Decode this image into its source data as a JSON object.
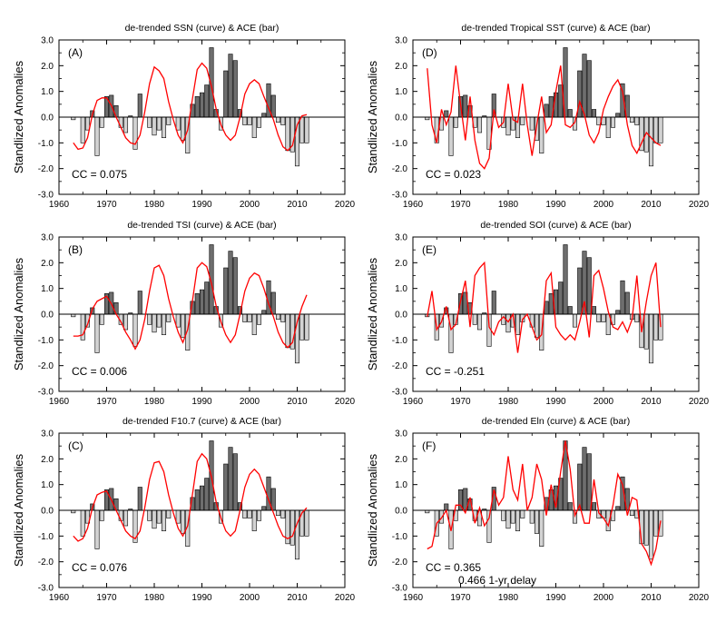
{
  "figure": {
    "ylabel": "Standlized Anomalies"
  },
  "chart_data": [
    {
      "type": "bar",
      "panel": "(A)",
      "title": "de-trended SSN (curve) & ACE (bar)",
      "ylabel": "Standlized Anomalies",
      "cc": "CC =  0.075",
      "xlim": [
        1960,
        2020
      ],
      "ylim": [
        -3.0,
        3.0
      ],
      "line": {
        "x": [
          1963,
          1964,
          1965,
          1966,
          1967,
          1968,
          1969,
          1970,
          1971,
          1972,
          1973,
          1974,
          1975,
          1976,
          1977,
          1978,
          1979,
          1980,
          1981,
          1982,
          1983,
          1984,
          1985,
          1986,
          1987,
          1988,
          1989,
          1990,
          1991,
          1992,
          1993,
          1994,
          1995,
          1996,
          1997,
          1998,
          1999,
          2000,
          2001,
          2002,
          2003,
          2004,
          2005,
          2006,
          2007,
          2008,
          2009,
          2010,
          2011,
          2012
        ],
        "y": [
          -1.0,
          -1.25,
          -1.2,
          -0.8,
          0.1,
          0.65,
          0.75,
          0.75,
          0.45,
          0.0,
          -0.4,
          -0.8,
          -1.0,
          -1.05,
          -0.7,
          0.2,
          1.3,
          1.95,
          1.8,
          1.5,
          0.6,
          -0.1,
          -0.7,
          -1.0,
          -0.5,
          0.7,
          1.85,
          2.1,
          1.9,
          1.2,
          0.3,
          -0.3,
          -0.7,
          -0.9,
          -0.7,
          0.0,
          0.9,
          1.3,
          1.45,
          1.3,
          0.8,
          0.35,
          -0.1,
          -0.7,
          -1.15,
          -1.3,
          -1.1,
          -0.3,
          0.05,
          0.1
        ]
      }
    },
    {
      "type": "bar",
      "panel": "(B)",
      "title": "de-trended TSI (curve) & ACE (bar)",
      "ylabel": "Standlized Anomalies",
      "cc": "CC =  0.006",
      "xlim": [
        1960,
        2020
      ],
      "ylim": [
        -3.0,
        3.0
      ],
      "line": {
        "x": [
          1963,
          1964,
          1965,
          1966,
          1967,
          1968,
          1969,
          1970,
          1971,
          1972,
          1973,
          1974,
          1975,
          1976,
          1977,
          1978,
          1979,
          1980,
          1981,
          1982,
          1983,
          1984,
          1985,
          1986,
          1987,
          1988,
          1989,
          1990,
          1991,
          1992,
          1993,
          1994,
          1995,
          1996,
          1997,
          1998,
          1999,
          2000,
          2001,
          2002,
          2003,
          2004,
          2005,
          2006,
          2007,
          2008,
          2009,
          2010,
          2011,
          2012
        ],
        "y": [
          -0.85,
          -0.85,
          -0.8,
          -0.4,
          0.2,
          0.5,
          0.6,
          0.7,
          0.4,
          0.0,
          -0.3,
          -0.7,
          -1.0,
          -1.35,
          -1.0,
          -0.2,
          0.9,
          1.8,
          1.9,
          1.5,
          0.6,
          -0.1,
          -0.7,
          -1.1,
          -0.6,
          0.5,
          1.8,
          2.0,
          1.85,
          1.2,
          0.3,
          -0.3,
          -0.8,
          -1.1,
          -0.8,
          0.0,
          0.9,
          1.4,
          1.6,
          1.5,
          1.0,
          0.4,
          -0.1,
          -0.7,
          -1.1,
          -1.3,
          -1.1,
          -0.3,
          0.3,
          0.75
        ]
      }
    },
    {
      "type": "bar",
      "panel": "(C)",
      "title": "de-trended F10.7 (curve) & ACE (bar)",
      "ylabel": "Standlized Anomalies",
      "cc": "CC =  0.076",
      "xlim": [
        1960,
        2020
      ],
      "ylim": [
        -3.0,
        3.0
      ],
      "line": {
        "x": [
          1963,
          1964,
          1965,
          1966,
          1967,
          1968,
          1969,
          1970,
          1971,
          1972,
          1973,
          1974,
          1975,
          1976,
          1977,
          1978,
          1979,
          1980,
          1981,
          1982,
          1983,
          1984,
          1985,
          1986,
          1987,
          1988,
          1989,
          1990,
          1991,
          1992,
          1993,
          1994,
          1995,
          1996,
          1997,
          1998,
          1999,
          2000,
          2001,
          2002,
          2003,
          2004,
          2005,
          2006,
          2007,
          2008,
          2009,
          2010,
          2011,
          2012
        ],
        "y": [
          -1.0,
          -1.2,
          -1.1,
          -0.7,
          0.1,
          0.6,
          0.7,
          0.75,
          0.4,
          0.0,
          -0.4,
          -0.8,
          -1.0,
          -1.1,
          -0.8,
          0.1,
          1.2,
          1.85,
          1.9,
          1.5,
          0.6,
          -0.1,
          -0.7,
          -1.0,
          -0.6,
          0.6,
          1.9,
          2.2,
          2.0,
          1.3,
          0.3,
          -0.3,
          -0.8,
          -1.0,
          -0.8,
          0.0,
          0.9,
          1.4,
          1.6,
          1.4,
          0.9,
          0.4,
          -0.1,
          -0.6,
          -1.0,
          -1.1,
          -1.0,
          -0.5,
          -0.1,
          0.1
        ]
      }
    },
    {
      "type": "bar",
      "panel": "(D)",
      "title": "de-trended Tropical SST (curve) & ACE (bar)",
      "ylabel": "Standlized Anomalies",
      "cc": "CC =  0.023",
      "xlim": [
        1960,
        2020
      ],
      "ylim": [
        -3.0,
        3.0
      ],
      "line": {
        "x": [
          1963,
          1964,
          1965,
          1966,
          1967,
          1968,
          1969,
          1970,
          1971,
          1972,
          1973,
          1974,
          1975,
          1976,
          1977,
          1978,
          1979,
          1980,
          1981,
          1982,
          1983,
          1984,
          1985,
          1986,
          1987,
          1988,
          1989,
          1990,
          1991,
          1992,
          1993,
          1994,
          1995,
          1996,
          1997,
          1998,
          1999,
          2000,
          2001,
          2002,
          2003,
          2004,
          2005,
          2006,
          2007,
          2008,
          2009,
          2010,
          2011,
          2012
        ],
        "y": [
          1.9,
          -0.3,
          -1.0,
          0.3,
          -0.3,
          0.2,
          2.0,
          0.5,
          -0.9,
          0.8,
          -0.9,
          -1.8,
          -2.0,
          -1.6,
          0.3,
          -0.4,
          -0.2,
          1.3,
          -0.1,
          -0.2,
          1.3,
          -0.3,
          -1.5,
          -0.3,
          0.8,
          -0.6,
          -0.3,
          1.0,
          2.0,
          -0.3,
          -0.4,
          -0.2,
          0.6,
          0.1,
          -0.7,
          -1.0,
          -0.6,
          0.3,
          0.8,
          1.2,
          1.45,
          1.0,
          -0.3,
          -1.1,
          -1.4,
          -1.0,
          -0.6,
          -0.8,
          -1.0,
          -1.1
        ]
      }
    },
    {
      "type": "bar",
      "panel": "(E)",
      "title": "de-trended SOI (curve) & ACE (bar)",
      "ylabel": "Standlized Anomalies",
      "cc": "CC = -0.251",
      "xlim": [
        1960,
        2020
      ],
      "ylim": [
        -3.0,
        3.0
      ],
      "line": {
        "x": [
          1963,
          1964,
          1965,
          1966,
          1967,
          1968,
          1969,
          1970,
          1971,
          1972,
          1973,
          1974,
          1975,
          1976,
          1977,
          1978,
          1979,
          1980,
          1981,
          1982,
          1983,
          1984,
          1985,
          1986,
          1987,
          1988,
          1989,
          1990,
          1991,
          1992,
          1993,
          1994,
          1995,
          1996,
          1997,
          1998,
          1999,
          2000,
          2001,
          2002,
          2003,
          2004,
          2005,
          2006,
          2007,
          2008,
          2009,
          2010,
          2011,
          2012
        ],
        "y": [
          -0.1,
          0.9,
          -0.6,
          -0.3,
          0.3,
          -0.6,
          -0.4,
          0.5,
          1.3,
          -0.5,
          1.5,
          1.8,
          2.0,
          -0.5,
          -0.8,
          -0.3,
          -0.1,
          -0.3,
          0.0,
          -1.5,
          -0.2,
          0.0,
          -0.5,
          -1.0,
          -0.8,
          1.3,
          1.6,
          -0.5,
          -0.8,
          -1.0,
          -0.8,
          -1.0,
          -0.3,
          0.5,
          -0.9,
          1.5,
          1.7,
          1.0,
          0.1,
          -0.5,
          -0.6,
          -0.3,
          -0.7,
          -0.2,
          1.5,
          -0.7,
          0.5,
          1.5,
          2.0,
          -0.5
        ]
      }
    },
    {
      "type": "bar",
      "panel": "(F)",
      "title": "de-trended Eln (curve) & ACE (bar)",
      "ylabel": "Standlized Anomalies",
      "cc": "CC =  0.365",
      "cc2": "0.466 1-yr delay",
      "xlim": [
        1960,
        2020
      ],
      "ylim": [
        -3.0,
        3.0
      ],
      "line": {
        "x": [
          1963,
          1964,
          1965,
          1966,
          1967,
          1968,
          1969,
          1970,
          1971,
          1972,
          1973,
          1974,
          1975,
          1976,
          1977,
          1978,
          1979,
          1980,
          1981,
          1982,
          1983,
          1984,
          1985,
          1986,
          1987,
          1988,
          1989,
          1990,
          1991,
          1992,
          1993,
          1994,
          1995,
          1996,
          1997,
          1998,
          1999,
          2000,
          2001,
          2002,
          2003,
          2004,
          2005,
          2006,
          2007,
          2008,
          2009,
          2010,
          2011,
          2012
        ],
        "y": [
          -1.5,
          -1.4,
          -0.5,
          -0.3,
          0.0,
          -0.8,
          0.2,
          0.2,
          -0.1,
          0.5,
          -0.5,
          0.1,
          -0.6,
          -0.3,
          0.8,
          0.2,
          0.5,
          2.1,
          0.8,
          0.4,
          1.8,
          0.0,
          0.5,
          1.8,
          1.2,
          -0.2,
          1.0,
          0.1,
          1.5,
          2.7,
          1.6,
          -0.2,
          0.2,
          -0.5,
          -0.5,
          1.2,
          -0.1,
          -0.3,
          -0.6,
          0.2,
          1.4,
          1.0,
          -0.2,
          0.5,
          0.4,
          -1.3,
          -1.6,
          -2.1,
          -1.5,
          -0.4
        ]
      }
    }
  ],
  "ace_bars": {
    "x": [
      1963,
      1964,
      1965,
      1966,
      1967,
      1968,
      1969,
      1970,
      1971,
      1972,
      1973,
      1974,
      1975,
      1976,
      1977,
      1978,
      1979,
      1980,
      1981,
      1982,
      1983,
      1984,
      1985,
      1986,
      1987,
      1988,
      1989,
      1990,
      1991,
      1992,
      1993,
      1994,
      1995,
      1996,
      1997,
      1998,
      1999,
      2000,
      2001,
      2002,
      2003,
      2004,
      2005,
      2006,
      2007,
      2008,
      2009,
      2010,
      2011,
      2012
    ],
    "y": [
      -0.1,
      0.0,
      -1.0,
      -0.5,
      0.25,
      -1.5,
      -0.4,
      0.8,
      0.85,
      0.45,
      -0.4,
      -0.6,
      0.05,
      -1.25,
      0.9,
      0.0,
      -0.4,
      -0.7,
      -0.5,
      -0.8,
      -0.3,
      0.0,
      -0.5,
      -0.9,
      -1.4,
      0.5,
      0.8,
      0.95,
      1.25,
      2.7,
      0.3,
      -0.5,
      1.8,
      2.45,
      2.2,
      0.3,
      -0.3,
      -0.3,
      -0.8,
      -0.4,
      0.15,
      1.3,
      0.85,
      -0.2,
      -0.3,
      -1.3,
      -1.35,
      -1.9,
      -1.0,
      -1.0
    ],
    "positive_color": "#6e6e6e",
    "negative_color": "#d3d3d3",
    "edge_color": "#000000"
  },
  "style": {
    "curve_color": "#ff0000"
  },
  "axes": {
    "xticks": [
      "1960",
      "1970",
      "1980",
      "1990",
      "2000",
      "2010",
      "2020"
    ],
    "yticks": [
      "-3.0",
      "-2.0",
      "-1.0",
      "0.0",
      "1.0",
      "2.0",
      "3.0"
    ]
  }
}
